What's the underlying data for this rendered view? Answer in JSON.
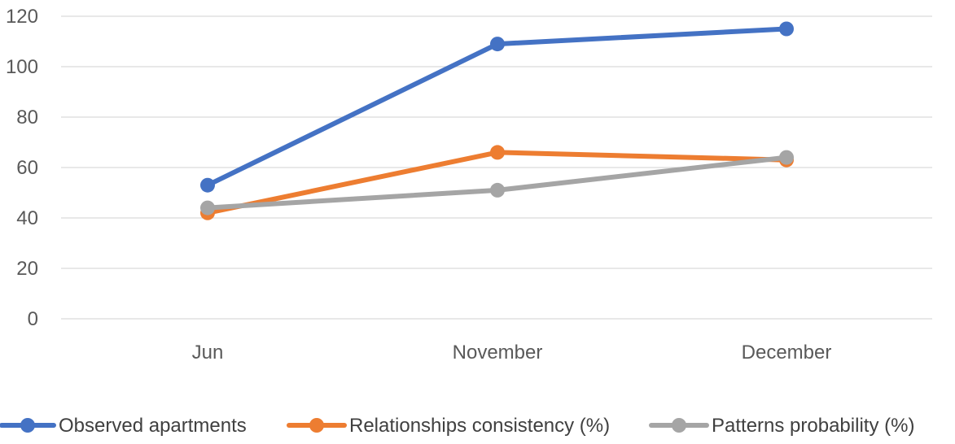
{
  "chart_data": {
    "type": "line",
    "categories": [
      "Jun",
      "November",
      "December"
    ],
    "series": [
      {
        "name": "Observed apartments",
        "values": [
          53,
          109,
          115
        ],
        "color": "#4472C4"
      },
      {
        "name": "Relationships consistency (%)",
        "values": [
          42,
          66,
          63
        ],
        "color": "#ED7D31"
      },
      {
        "name": "Patterns probability  (%)",
        "values": [
          44,
          51,
          64
        ],
        "color": "#A5A5A5"
      }
    ],
    "title": "",
    "xlabel": "",
    "ylabel": "",
    "ylim": [
      0,
      120
    ],
    "yticks": [
      0,
      20,
      40,
      60,
      80,
      100,
      120
    ],
    "grid": true,
    "gridline_color": "#D9D9D9",
    "legend_position": "bottom"
  }
}
